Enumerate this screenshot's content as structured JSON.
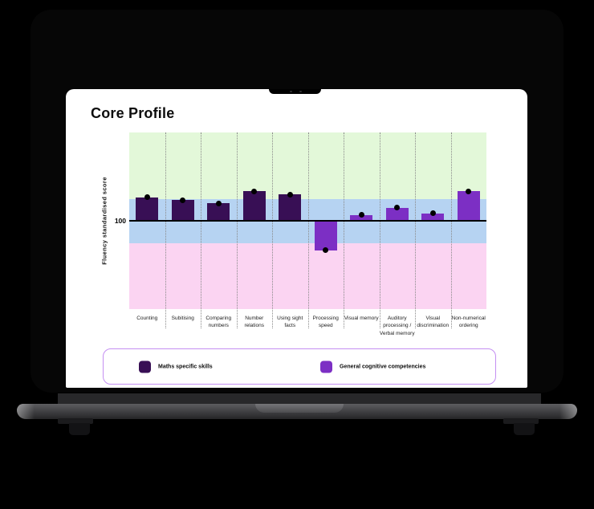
{
  "screen": {
    "title": "Core Profile"
  },
  "chart_data": {
    "type": "bar",
    "title": "Core Profile",
    "xlabel": "",
    "ylabel": "Fluency standardised score",
    "ylim": [
      40,
      160
    ],
    "baseline": 100,
    "baseline_label": "100",
    "grid": "dotted-vertical-separators",
    "legend_position": "bottom",
    "dot_color": "#000000",
    "bands": [
      {
        "name": "above-average-band",
        "from": 115,
        "to": 160,
        "color": "#e3f8d9"
      },
      {
        "name": "average-band",
        "from": 85,
        "to": 115,
        "color": "#b6d3f2"
      },
      {
        "name": "below-average-band",
        "from": 40,
        "to": 85,
        "color": "#fbd4f2"
      }
    ],
    "categories": [
      "Counting",
      "Subitising",
      "Comparing numbers",
      "Number relations",
      "Using sight facts",
      "Processing speed",
      "Visual memory",
      "Auditory processing / Verbal memory",
      "Visual discrimination",
      "Non-numerical ordering"
    ],
    "series_of_category": [
      "maths",
      "maths",
      "maths",
      "maths",
      "maths",
      "general",
      "general",
      "general",
      "general",
      "general"
    ],
    "values": [
      116,
      114,
      112,
      120,
      118,
      80,
      104,
      109,
      105,
      120
    ],
    "legend": [
      {
        "key": "maths",
        "label": "Maths specific skills",
        "color": "#380f55"
      },
      {
        "key": "general",
        "label": "General cognitive competencies",
        "color": "#7c2fc4"
      }
    ]
  },
  "colors": {
    "background": "#000000",
    "screen": "#ffffff",
    "baseline": "#000000",
    "legend_border": "#c48ff2",
    "separator": "#8a8a8a"
  }
}
